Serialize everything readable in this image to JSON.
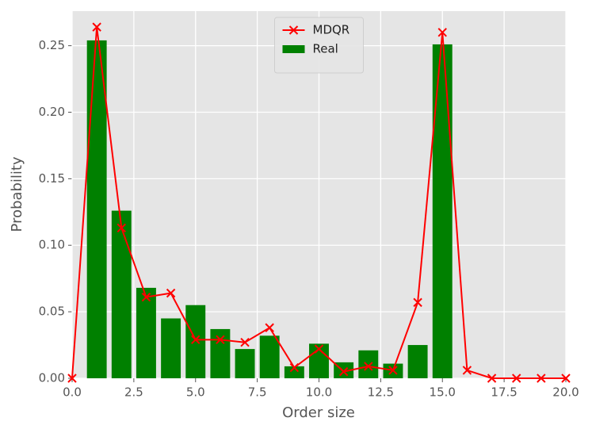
{
  "chart_data": {
    "type": "bar",
    "xlabel": "Order size",
    "ylabel": "Probability",
    "xlim": [
      0,
      20
    ],
    "ylim": [
      0,
      0.276
    ],
    "xticks": [
      {
        "value": 0,
        "label": "0.0"
      },
      {
        "value": 2.5,
        "label": "2.5"
      },
      {
        "value": 5,
        "label": "5.0"
      },
      {
        "value": 7.5,
        "label": "7.5"
      },
      {
        "value": 10,
        "label": "10.0"
      },
      {
        "value": 12.5,
        "label": "12.5"
      },
      {
        "value": 15,
        "label": "15.0"
      },
      {
        "value": 17.5,
        "label": "17.5"
      },
      {
        "value": 20,
        "label": "20.0"
      }
    ],
    "yticks": [
      {
        "value": 0,
        "label": "0.00"
      },
      {
        "value": 0.05,
        "label": "0.05"
      },
      {
        "value": 0.1,
        "label": "0.10"
      },
      {
        "value": 0.15,
        "label": "0.15"
      },
      {
        "value": 0.2,
        "label": "0.20"
      },
      {
        "value": 0.25,
        "label": "0.25"
      }
    ],
    "grid": true,
    "legend": "upper center",
    "series": [
      {
        "name": "MDQR",
        "type": "line",
        "color": "#ff0000",
        "x": [
          0,
          1,
          2,
          3,
          4,
          5,
          6,
          7,
          8,
          9,
          10,
          11,
          12,
          13,
          14,
          15,
          16,
          17,
          18,
          19,
          20
        ],
        "values": [
          0.0,
          0.264,
          0.113,
          0.061,
          0.064,
          0.029,
          0.029,
          0.027,
          0.038,
          0.008,
          0.022,
          0.005,
          0.009,
          0.006,
          0.057,
          0.26,
          0.006,
          0.0,
          0.0,
          0.0,
          0.0
        ]
      },
      {
        "name": "Real",
        "type": "bar",
        "color": "#008000",
        "x": [
          1,
          2,
          3,
          4,
          5,
          6,
          7,
          8,
          9,
          10,
          11,
          12,
          13,
          14,
          15
        ],
        "values": [
          0.254,
          0.126,
          0.068,
          0.045,
          0.055,
          0.037,
          0.022,
          0.032,
          0.009,
          0.026,
          0.012,
          0.021,
          0.011,
          0.025,
          0.251
        ]
      }
    ]
  }
}
